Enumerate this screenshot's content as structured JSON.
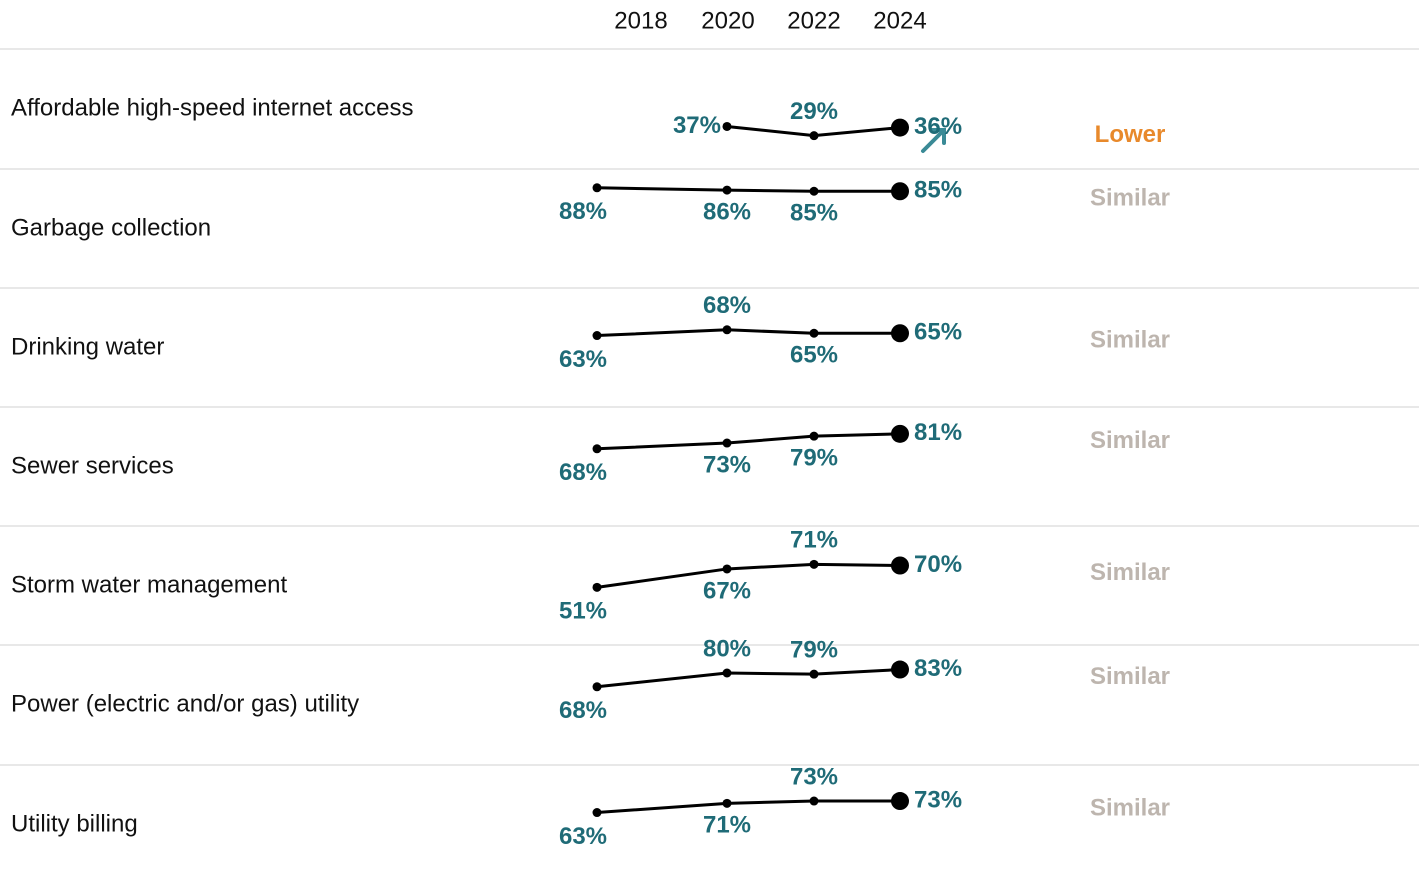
{
  "years": [
    "2018",
    "2020",
    "2022",
    "2024"
  ],
  "ylim": [
    0,
    100
  ],
  "rows": [
    {
      "label": "Affordable high-speed internet access",
      "values": [
        null,
        37,
        29,
        36
      ],
      "comparison": "Lower",
      "comparison_color": "#e8892b"
    },
    {
      "label": "Garbage collection",
      "values": [
        88,
        86,
        85,
        85
      ],
      "comparison": "Similar",
      "comparison_color": "#bdb5ae"
    },
    {
      "label": "Drinking water",
      "values": [
        63,
        68,
        65,
        65
      ],
      "comparison": "Similar",
      "comparison_color": "#bdb5ae"
    },
    {
      "label": "Sewer services",
      "values": [
        68,
        73,
        79,
        81
      ],
      "comparison": "Similar",
      "comparison_color": "#bdb5ae"
    },
    {
      "label": "Storm water management",
      "values": [
        51,
        67,
        71,
        70
      ],
      "comparison": "Similar",
      "comparison_color": "#bdb5ae"
    },
    {
      "label": "Power (electric and/or gas) utility",
      "values": [
        68,
        80,
        79,
        83
      ],
      "comparison": "Similar",
      "comparison_color": "#bdb5ae"
    },
    {
      "label": "Utility billing",
      "values": [
        63,
        71,
        73,
        73
      ],
      "comparison": "Similar",
      "comparison_color": "#bdb5ae"
    }
  ]
}
